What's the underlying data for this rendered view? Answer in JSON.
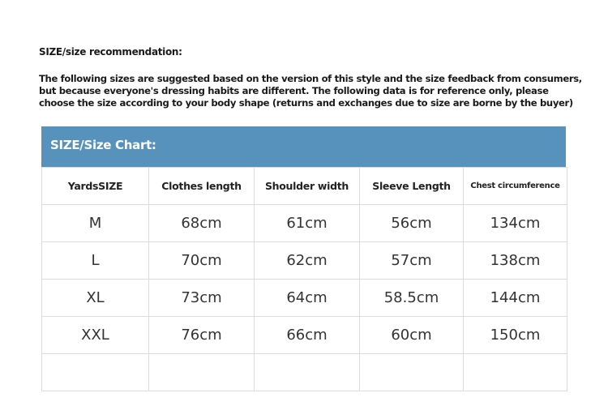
{
  "heading": "SIZE/size recommendation:",
  "intro_lines": [
    "The following sizes are suggested based on the version of this style and the size feedback from consumers,",
    "but because everyone's dressing habits are different. The following data is for reference only, please",
    "choose the size according to your body shape (returns and exchanges due to size are borne by the buyer)"
  ],
  "chart": {
    "title": "SIZE/Size Chart:",
    "header_color": "#5692bb",
    "columns": [
      "YardsSIZE",
      "Clothes length",
      "Shoulder width",
      "Sleeve Length",
      "Chest circumference"
    ],
    "rows": [
      [
        "M",
        "68cm",
        "61cm",
        "56cm",
        "134cm"
      ],
      [
        "L",
        "70cm",
        "62cm",
        "57cm",
        "138cm"
      ],
      [
        "XL",
        "73cm",
        "64cm",
        "58.5cm",
        "144cm"
      ],
      [
        "XXL",
        "76cm",
        "66cm",
        "60cm",
        "150cm"
      ],
      [
        "",
        "",
        "",
        "",
        ""
      ]
    ]
  }
}
